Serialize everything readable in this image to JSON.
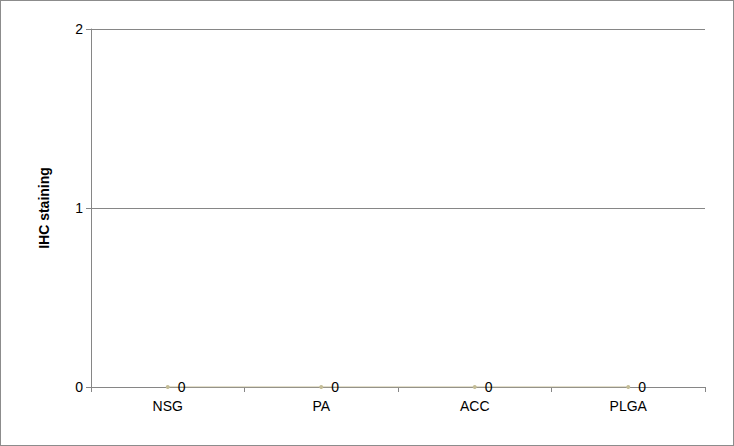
{
  "chart_data": {
    "type": "line",
    "y_label": "IHC staining",
    "categories": [
      "NSG",
      "PA",
      "ACC",
      "PLGA"
    ],
    "values": [
      0,
      0,
      0,
      0
    ],
    "color": "#c4bd97",
    "ylim": [
      0,
      2
    ],
    "yticks": [
      0,
      1,
      2
    ],
    "grid": true,
    "data_labels": true
  }
}
